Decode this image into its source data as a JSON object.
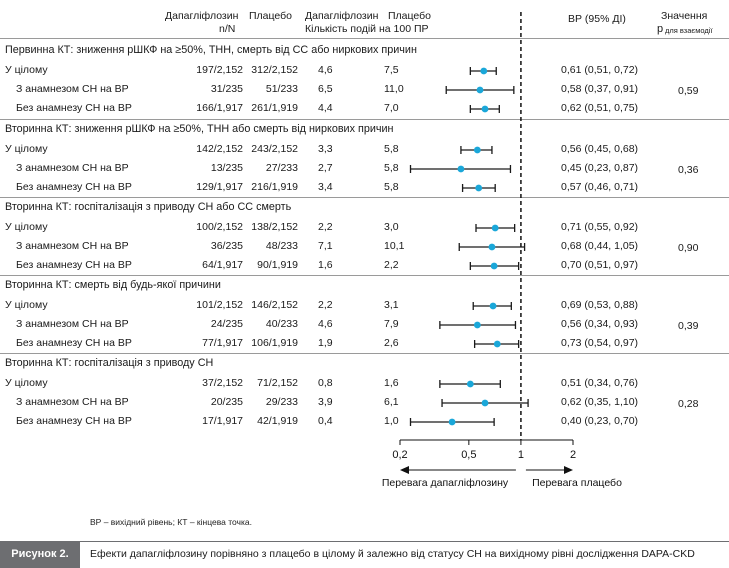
{
  "header": {
    "dapa_label": "Дапагліфлозин",
    "placebo_label": "Плацебо",
    "nN_label": "n/N",
    "rate_dapa_label": "Дапагліфлозин",
    "rate_placebo_label": "Плацебо",
    "rate_sub_label": "Кількість подій на 100 ПР",
    "hr_label": "ВР (95% ДІ)",
    "p_label": "Значення",
    "p_sub_p": "p",
    "p_sub_label": "для взаємодії"
  },
  "sections": [
    {
      "title": "Первинна КТ: зниження рШКФ на ≥50%, ТНН, смерть від СС або ниркових причин",
      "p_interaction": "0,59",
      "rows": [
        {
          "label": "У цілому",
          "dapa": "197/2,152",
          "placebo": "312/2,152",
          "rate_dapa": "4,6",
          "rate_placebo": "7,5",
          "hr_text": "0,61 (0,51, 0,72)",
          "hr": 0.61,
          "lo": 0.51,
          "hi": 0.72
        },
        {
          "label": "З анамнезом СН на ВР",
          "dapa": "31/235",
          "placebo": "51/233",
          "rate_dapa": "6,5",
          "rate_placebo": "11,0",
          "hr_text": "0,58 (0,37, 0,91)",
          "hr": 0.58,
          "lo": 0.37,
          "hi": 0.91
        },
        {
          "label": "Без анамнезу СН на ВР",
          "dapa": "166/1,917",
          "placebo": "261/1,919",
          "rate_dapa": "4,4",
          "rate_placebo": "7,0",
          "hr_text": "0,62 (0,51, 0,75)",
          "hr": 0.62,
          "lo": 0.51,
          "hi": 0.75
        }
      ]
    },
    {
      "title": "Вторинна КТ: зниження рШКФ на ≥50%, ТНН або смерть від ниркових причин",
      "p_interaction": "0,36",
      "rows": [
        {
          "label": "У цілому",
          "dapa": "142/2,152",
          "placebo": "243/2,152",
          "rate_dapa": "3,3",
          "rate_placebo": "5,8",
          "hr_text": "0,56 (0,45, 0,68)",
          "hr": 0.56,
          "lo": 0.45,
          "hi": 0.68
        },
        {
          "label": "З анамнезом СН на ВР",
          "dapa": "13/235",
          "placebo": "27/233",
          "rate_dapa": "2,7",
          "rate_placebo": "5,8",
          "hr_text": "0,45 (0,23, 0,87)",
          "hr": 0.45,
          "lo": 0.23,
          "hi": 0.87
        },
        {
          "label": "Без анамнезу СН на ВР",
          "dapa": "129/1,917",
          "placebo": "216/1,919",
          "rate_dapa": "3,4",
          "rate_placebo": "5,8",
          "hr_text": "0,57 (0,46, 0,71)",
          "hr": 0.57,
          "lo": 0.46,
          "hi": 0.71
        }
      ]
    },
    {
      "title": "Вторинна КТ: госпіталізація з приводу СН або СС смерть",
      "p_interaction": "0,90",
      "rows": [
        {
          "label": "У цілому",
          "dapa": "100/2,152",
          "placebo": "138/2,152",
          "rate_dapa": "2,2",
          "rate_placebo": "3,0",
          "hr_text": "0,71 (0,55, 0,92)",
          "hr": 0.71,
          "lo": 0.55,
          "hi": 0.92
        },
        {
          "label": "З анамнезом СН на ВР",
          "dapa": "36/235",
          "placebo": "48/233",
          "rate_dapa": "7,1",
          "rate_placebo": "10,1",
          "hr_text": "0,68 (0,44, 1,05)",
          "hr": 0.68,
          "lo": 0.44,
          "hi": 1.05
        },
        {
          "label": "Без анамнезу СН на ВР",
          "dapa": "64/1,917",
          "placebo": "90/1,919",
          "rate_dapa": "1,6",
          "rate_placebo": "2,2",
          "hr_text": "0,70 (0,51, 0,97)",
          "hr": 0.7,
          "lo": 0.51,
          "hi": 0.97
        }
      ]
    },
    {
      "title": "Вторинна КТ: смерть від будь-якої причини",
      "p_interaction": "0,39",
      "rows": [
        {
          "label": "У цілому",
          "dapa": "101/2,152",
          "placebo": "146/2,152",
          "rate_dapa": "2,2",
          "rate_placebo": "3,1",
          "hr_text": "0,69 (0,53, 0,88)",
          "hr": 0.69,
          "lo": 0.53,
          "hi": 0.88
        },
        {
          "label": "З анамнезом СН на ВР",
          "dapa": "24/235",
          "placebo": "40/233",
          "rate_dapa": "4,6",
          "rate_placebo": "7,9",
          "hr_text": "0,56 (0,34, 0,93)",
          "hr": 0.56,
          "lo": 0.34,
          "hi": 0.93
        },
        {
          "label": "Без анамнезу СН на ВР",
          "dapa": "77/1,917",
          "placebo": "106/1,919",
          "rate_dapa": "1,9",
          "rate_placebo": "2,6",
          "hr_text": "0,73 (0,54, 0,97)",
          "hr": 0.73,
          "lo": 0.54,
          "hi": 0.97
        }
      ]
    },
    {
      "title": "Вторинна КТ: госпіталізація з приводу СН",
      "p_interaction": "0,28",
      "rows": [
        {
          "label": "У цілому",
          "dapa": "37/2,152",
          "placebo": "71/2,152",
          "rate_dapa": "0,8",
          "rate_placebo": "1,6",
          "hr_text": "0,51 (0,34, 0,76)",
          "hr": 0.51,
          "lo": 0.34,
          "hi": 0.76
        },
        {
          "label": "З анамнезом СН на ВР",
          "dapa": "20/235",
          "placebo": "29/233",
          "rate_dapa": "3,9",
          "rate_placebo": "6,1",
          "hr_text": "0,62 (0,35, 1,10)",
          "hr": 0.62,
          "lo": 0.35,
          "hi": 1.1
        },
        {
          "label": "Без анамнезу СН на ВР",
          "dapa": "17/1,917",
          "placebo": "42/1,919",
          "rate_dapa": "0,4",
          "rate_placebo": "1,0",
          "hr_text": "0,40 (0,23, 0,70)",
          "hr": 0.4,
          "lo": 0.23,
          "hi": 0.7
        }
      ]
    }
  ],
  "chart_data": {
    "type": "forest",
    "scale": "log",
    "x_ticks": [
      0.2,
      0.5,
      1,
      2
    ],
    "x_tick_labels": [
      "0,2",
      "0,5",
      "1",
      "2"
    ],
    "xlim": [
      0.2,
      2
    ],
    "reference_line": 1,
    "favors_left": "Перевага дапагліфлозину",
    "favors_right": "Перевага плацебо",
    "point_color": "#1aa7d9",
    "line_color": "#1a1a1a"
  },
  "footnote": "ВР – вихідний рівень; КТ – кінцева точка.",
  "figure": {
    "label": "Рисунок 2.",
    "caption": "Ефекти дапагліфлозину порівняно з плацебо в цілому й залежно від статусу СН на вихідному рівні дослідження DAPA-CKD"
  }
}
